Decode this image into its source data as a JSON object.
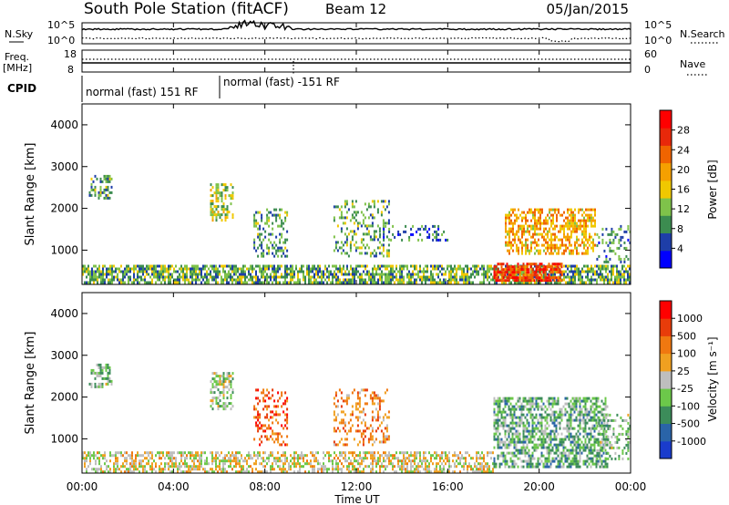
{
  "header": {
    "title": "South Pole Station (fitACF)",
    "beam": "Beam 12",
    "date": "05/Jan/2015"
  },
  "noise_panel": {
    "left_label": "N.Sky",
    "right_label": "N.Search",
    "left_ticks": [
      "10^5",
      "10^0"
    ],
    "right_ticks": [
      "10^5",
      "10^0"
    ]
  },
  "freq_panel": {
    "left_label_1": "Freq.",
    "left_label_2": "[MHz]",
    "left_ticks": [
      "18",
      "8"
    ],
    "right_label": "Nave",
    "right_ticks": [
      "60",
      "0"
    ]
  },
  "cpid_panel": {
    "label": "CPID",
    "modes": [
      {
        "name": "normal (fast) 151 RF",
        "start_hour": 0
      },
      {
        "name": "normal (fast) -151 RF",
        "start_hour": 6
      }
    ]
  },
  "x_axis": {
    "label": "Time UT",
    "ticks": [
      "00:00",
      "04:00",
      "08:00",
      "12:00",
      "16:00",
      "20:00",
      "00:00"
    ]
  },
  "power_colorbar": {
    "label": "Power [dB]",
    "ticks": [
      "28",
      "24",
      "20",
      "16",
      "12",
      "8",
      "4"
    ],
    "colors": [
      "#0000ff",
      "#1e3ea8",
      "#3c8c50",
      "#7fc24a",
      "#f0c800",
      "#f5a000",
      "#f06400",
      "#e8280a",
      "#ff0000"
    ]
  },
  "velocity_colorbar": {
    "label": "Velocity [m s⁻¹]",
    "ticks": [
      "1000",
      "500",
      "100",
      "25",
      "-25",
      "-100",
      "-500",
      "-1000"
    ],
    "colors": [
      "#1a3ccc",
      "#2a64a8",
      "#3c8c5a",
      "#6cc84a",
      "#bebebe",
      "#f0a020",
      "#f07810",
      "#e83c0a",
      "#ff0000"
    ]
  },
  "chart_data": [
    {
      "type": "heatmap",
      "name": "power",
      "ylabel": "Slant Range [km]",
      "xlabel": "Time UT",
      "xlim": [
        0,
        24
      ],
      "ylim": [
        180,
        4500
      ],
      "yticks": [
        "1000",
        "2000",
        "3000",
        "4000"
      ],
      "colorbar_range": [
        0,
        30
      ],
      "features": [
        {
          "t0": 0.0,
          "t1": 24.0,
          "r0": 200,
          "r1": 650,
          "density": 0.7,
          "val": 10
        },
        {
          "t0": 0.3,
          "t1": 1.3,
          "r0": 2200,
          "r1": 2800,
          "density": 0.45,
          "val": 9
        },
        {
          "t0": 5.6,
          "t1": 6.6,
          "r0": 1700,
          "r1": 2600,
          "density": 0.5,
          "val": 13
        },
        {
          "t0": 7.5,
          "t1": 9.0,
          "r0": 800,
          "r1": 2000,
          "density": 0.3,
          "val": 9
        },
        {
          "t0": 11.0,
          "t1": 13.5,
          "r0": 800,
          "r1": 2200,
          "density": 0.3,
          "val": 10
        },
        {
          "t0": 13.0,
          "t1": 16.0,
          "r0": 1200,
          "r1": 1600,
          "density": 0.25,
          "val": 7
        },
        {
          "t0": 18.5,
          "t1": 22.5,
          "r0": 900,
          "r1": 2000,
          "density": 0.55,
          "val": 18
        },
        {
          "t0": 18.0,
          "t1": 21.0,
          "r0": 250,
          "r1": 700,
          "density": 0.75,
          "val": 24
        },
        {
          "t0": 22.5,
          "t1": 24.0,
          "r0": 700,
          "r1": 1600,
          "density": 0.3,
          "val": 8
        }
      ]
    },
    {
      "type": "heatmap",
      "name": "velocity",
      "ylabel": "Slant Range [km]",
      "xlabel": "Time UT",
      "xlim": [
        0,
        24
      ],
      "ylim": [
        180,
        4500
      ],
      "yticks": [
        "1000",
        "2000",
        "3000",
        "4000"
      ],
      "colorbar_range": [
        -1000,
        1000
      ],
      "features": [
        {
          "t0": 0.0,
          "t1": 18.0,
          "r0": 200,
          "r1": 700,
          "density": 0.55,
          "val": 50
        },
        {
          "t0": 0.3,
          "t1": 1.3,
          "r0": 2200,
          "r1": 2800,
          "density": 0.45,
          "val": -200
        },
        {
          "t0": 5.6,
          "t1": 6.6,
          "r0": 1700,
          "r1": 2600,
          "density": 0.5,
          "val": -150
        },
        {
          "t0": 7.5,
          "t1": 9.0,
          "r0": 800,
          "r1": 2200,
          "density": 0.3,
          "val": 600
        },
        {
          "t0": 11.0,
          "t1": 13.5,
          "r0": 800,
          "r1": 2200,
          "density": 0.3,
          "val": 400
        },
        {
          "t0": 18.0,
          "t1": 23.0,
          "r0": 300,
          "r1": 2000,
          "density": 0.6,
          "val": -300
        },
        {
          "t0": 22.5,
          "t1": 24.0,
          "r0": 500,
          "r1": 1600,
          "density": 0.35,
          "val": -200
        }
      ]
    }
  ]
}
